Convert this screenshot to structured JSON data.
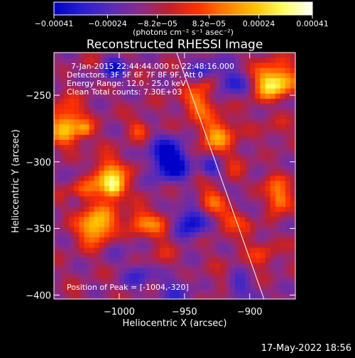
{
  "chart_data": {
    "type": "heatmap",
    "title": "Reconstructed RHESSI Image",
    "xlabel": "Heliocentric X (arcsec)",
    "ylabel": "Heliocentric Y (arcsec)",
    "xlim": [
      -1050,
      -865
    ],
    "ylim": [
      -403,
      -218
    ],
    "x_ticks": [
      {
        "value": -1000,
        "label": "−1000"
      },
      {
        "value": -950,
        "label": "−950"
      },
      {
        "value": -900,
        "label": "−900"
      }
    ],
    "y_ticks": [
      {
        "value": -250,
        "label": "−250"
      },
      {
        "value": -300,
        "label": "−300"
      },
      {
        "value": -350,
        "label": "−350"
      },
      {
        "value": -400,
        "label": "−400"
      }
    ],
    "colorbar": {
      "range": [
        -0.00041,
        0.00041
      ],
      "ticks": [
        {
          "value": -0.00041,
          "label": "−0.00041"
        },
        {
          "value": -0.00024,
          "label": "−0.00024"
        },
        {
          "value": -8.2e-05,
          "label": "−8.2e−05"
        },
        {
          "value": 8.2e-05,
          "label": "8.2e−05"
        },
        {
          "value": 0.00024,
          "label": "0.00024"
        },
        {
          "value": 0.00041,
          "label": "0.00041"
        }
      ],
      "unit_label": "(photons cm⁻² s⁻¹ asec⁻²)",
      "colors": [
        "#0000c8",
        "#2a1fd0",
        "#5a2bb8",
        "#8a2b8a",
        "#c0202c",
        "#ff3000",
        "#ff8000",
        "#ffc000",
        "#ffff60",
        "#ffffff"
      ]
    },
    "annotations": [
      "7-Jan-2015 22:44:44.000 to 22:48:16.000",
      "Detectors: 3F 5F 6F 7F 8F 9F, Att 0",
      "Energy Range: 12.0 - 25.0 keV",
      "Clean     Total counts: 7.30E+03"
    ],
    "peak_label": "Position of Peak = [-1004,-320]",
    "peak": [
      -1004,
      -320
    ],
    "limb_line": [
      [
        -956,
        -218
      ],
      [
        -889,
        -403
      ]
    ]
  },
  "footer": {
    "timestamp": "17-May-2022 18:56"
  }
}
